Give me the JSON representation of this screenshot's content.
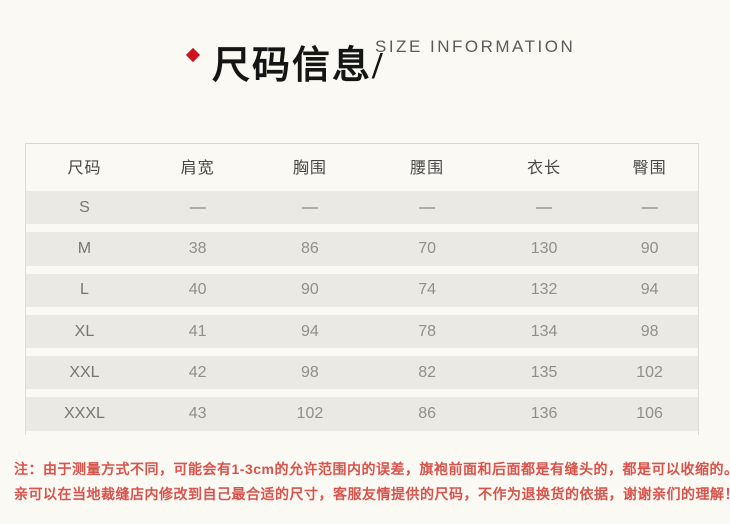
{
  "page": {
    "background": "#faf9f4",
    "accent_color": "#d01022",
    "note_color": "#d9534b",
    "row_band_color": "#eae9e4"
  },
  "header": {
    "bullet_icon": "red-diamond",
    "title": "尺码信息/",
    "subtitle": "SIZE INFORMATION"
  },
  "table": {
    "columns": [
      "尺码",
      "肩宽",
      "胸围",
      "腰围",
      "衣长",
      "臀围"
    ],
    "rows": [
      {
        "cells": [
          "S",
          "—",
          "—",
          "—",
          "—",
          "—"
        ]
      },
      {
        "cells": [
          "M",
          "38",
          "86",
          "70",
          "130",
          "90"
        ]
      },
      {
        "cells": [
          "L",
          "40",
          "90",
          "74",
          "132",
          "94"
        ]
      },
      {
        "cells": [
          "XL",
          "41",
          "94",
          "78",
          "134",
          "98"
        ]
      },
      {
        "cells": [
          "XXL",
          "42",
          "98",
          "82",
          "135",
          "102"
        ]
      },
      {
        "cells": [
          "XXXL",
          "43",
          "102",
          "86",
          "136",
          "106"
        ]
      }
    ]
  },
  "notes": {
    "line1": "注：由于测量方式不同，可能会有1-3cm的允许范围内的误差，旗袍前面和后面都是有缝头的，都是可以收缩的。",
    "line2": "亲可以在当地裁缝店内修改到自己最合适的尺寸，客服友情提供的尺码，不作为退换货的依据，谢谢亲们的理解！"
  },
  "chart_data": {
    "type": "table",
    "title": "尺码信息 / SIZE INFORMATION",
    "columns": [
      "尺码",
      "肩宽",
      "胸围",
      "腰围",
      "衣长",
      "臀围"
    ],
    "rows": [
      [
        "S",
        null,
        null,
        null,
        null,
        null
      ],
      [
        "M",
        38,
        86,
        70,
        130,
        90
      ],
      [
        "L",
        40,
        90,
        74,
        132,
        94
      ],
      [
        "XL",
        41,
        94,
        78,
        134,
        98
      ],
      [
        "XXL",
        42,
        98,
        82,
        135,
        102
      ],
      [
        "XXXL",
        43,
        102,
        86,
        136,
        106
      ]
    ],
    "units": "cm",
    "note": "S 行无数据（以 — 显示）"
  }
}
